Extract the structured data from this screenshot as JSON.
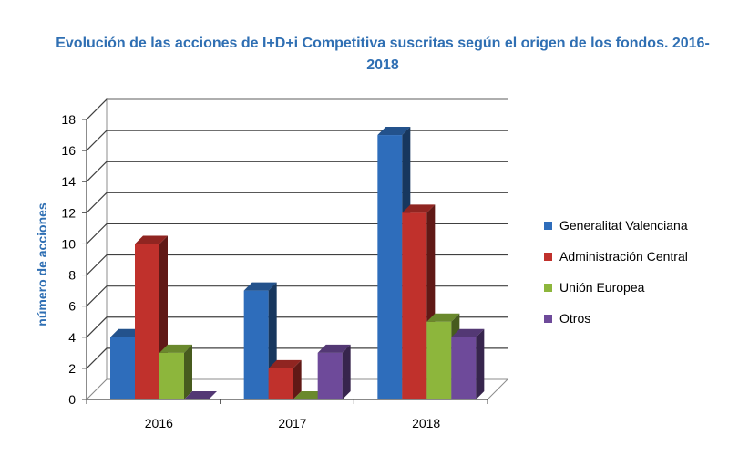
{
  "chart_data": {
    "type": "bar",
    "title": "Evolución de las acciones de I+D+i Competitiva suscritas según el origen de los fondos. 2016-2018",
    "xlabel": "",
    "ylabel": "número de acciones",
    "ylim": [
      0,
      18
    ],
    "yticks": [
      "0",
      "2",
      "4",
      "6",
      "8",
      "10",
      "12",
      "14",
      "16",
      "18"
    ],
    "categories": [
      "2016",
      "2017",
      "2018"
    ],
    "series": [
      {
        "name": "Generalitat Valenciana",
        "color": "#2E6DBB",
        "values": [
          4,
          7,
          17
        ]
      },
      {
        "name": "Administración Central",
        "color": "#C0312C",
        "values": [
          10,
          2,
          12
        ]
      },
      {
        "name": "Unión Europea",
        "color": "#8DB63C",
        "values": [
          3,
          0,
          5
        ]
      },
      {
        "name": "Otros",
        "color": "#6E4A9A",
        "values": [
          0,
          3,
          4
        ]
      }
    ],
    "grid": true,
    "legend": "right",
    "style": "3d-clustered"
  }
}
